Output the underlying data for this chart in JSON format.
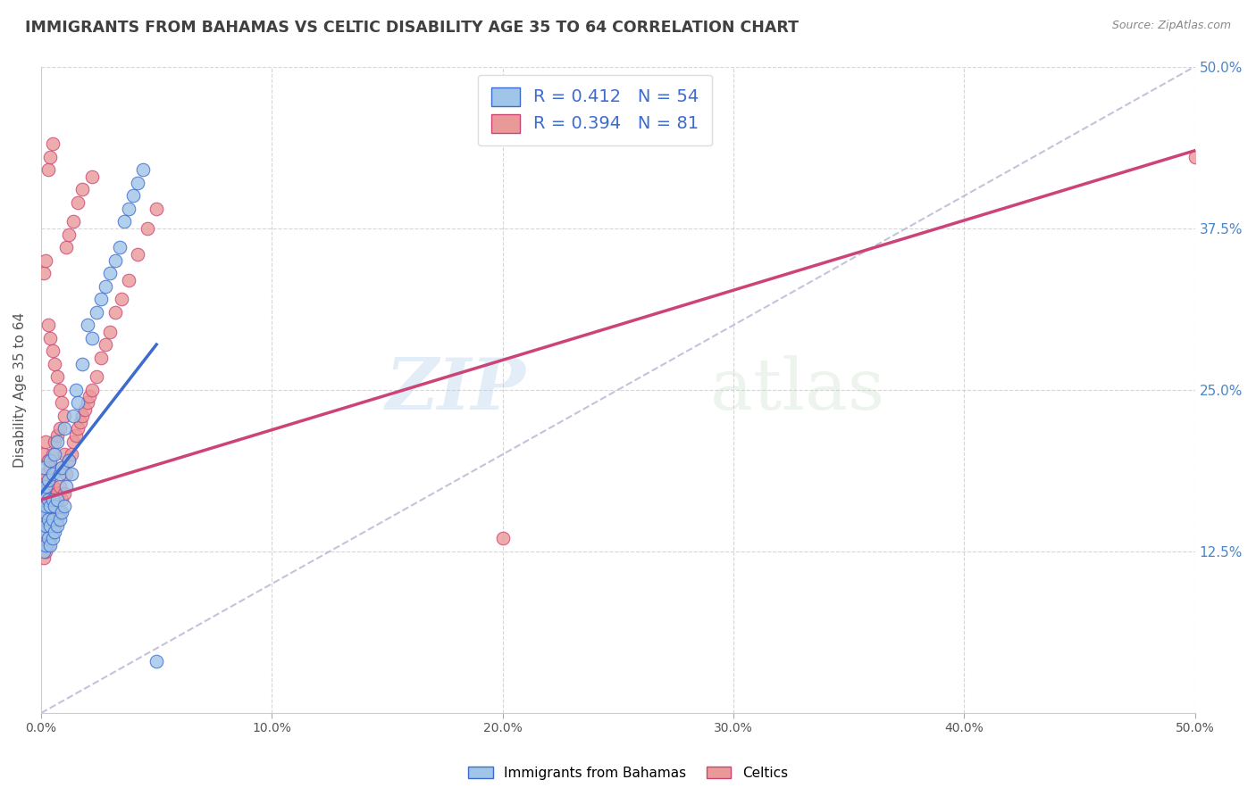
{
  "title": "IMMIGRANTS FROM BAHAMAS VS CELTIC DISABILITY AGE 35 TO 64 CORRELATION CHART",
  "source": "Source: ZipAtlas.com",
  "xlabel": "",
  "ylabel": "Disability Age 35 to 64",
  "xlim": [
    0.0,
    0.5
  ],
  "ylim": [
    0.0,
    0.5
  ],
  "xtick_labels": [
    "0.0%",
    "10.0%",
    "20.0%",
    "30.0%",
    "40.0%",
    "50.0%"
  ],
  "xtick_vals": [
    0.0,
    0.1,
    0.2,
    0.3,
    0.4,
    0.5
  ],
  "ytick_labels_right": [
    "12.5%",
    "25.0%",
    "37.5%",
    "50.0%"
  ],
  "ytick_vals_right": [
    0.125,
    0.25,
    0.375,
    0.5
  ],
  "legend1_label": "Immigrants from Bahamas",
  "legend2_label": "Celtics",
  "R_blue": 0.412,
  "N_blue": 54,
  "R_pink": 0.394,
  "N_pink": 81,
  "blue_color": "#9fc5e8",
  "pink_color": "#ea9999",
  "blue_line_color": "#3d6bce",
  "pink_line_color": "#cc4477",
  "grid_color": "#cccccc",
  "title_color": "#404040",
  "right_axis_color": "#4a86c8",
  "legend_text_color": "#3d6bce",
  "watermark_zip": "ZIP",
  "watermark_atlas": "atlas",
  "blue_line_x": [
    0.0,
    0.05
  ],
  "blue_line_y": [
    0.17,
    0.285
  ],
  "pink_line_x": [
    0.0,
    0.5
  ],
  "pink_line_y": [
    0.165,
    0.435
  ],
  "diag_line_x": [
    0.0,
    0.5
  ],
  "diag_line_y": [
    0.0,
    0.5
  ],
  "blue_scatter_x": [
    0.001,
    0.001,
    0.001,
    0.001,
    0.001,
    0.002,
    0.002,
    0.002,
    0.002,
    0.003,
    0.003,
    0.003,
    0.003,
    0.004,
    0.004,
    0.004,
    0.004,
    0.005,
    0.005,
    0.005,
    0.005,
    0.006,
    0.006,
    0.006,
    0.007,
    0.007,
    0.007,
    0.008,
    0.008,
    0.009,
    0.009,
    0.01,
    0.01,
    0.011,
    0.012,
    0.013,
    0.014,
    0.015,
    0.016,
    0.018,
    0.02,
    0.022,
    0.024,
    0.026,
    0.028,
    0.03,
    0.032,
    0.034,
    0.036,
    0.038,
    0.04,
    0.042,
    0.044,
    0.05
  ],
  "blue_scatter_y": [
    0.125,
    0.14,
    0.155,
    0.17,
    0.19,
    0.13,
    0.145,
    0.16,
    0.175,
    0.135,
    0.15,
    0.165,
    0.18,
    0.13,
    0.145,
    0.16,
    0.195,
    0.135,
    0.15,
    0.165,
    0.185,
    0.14,
    0.16,
    0.2,
    0.145,
    0.165,
    0.21,
    0.15,
    0.185,
    0.155,
    0.19,
    0.16,
    0.22,
    0.175,
    0.195,
    0.185,
    0.23,
    0.25,
    0.24,
    0.27,
    0.3,
    0.29,
    0.31,
    0.32,
    0.33,
    0.34,
    0.35,
    0.36,
    0.38,
    0.39,
    0.4,
    0.41,
    0.42,
    0.04
  ],
  "pink_scatter_x": [
    0.001,
    0.001,
    0.001,
    0.001,
    0.001,
    0.001,
    0.002,
    0.002,
    0.002,
    0.002,
    0.002,
    0.002,
    0.003,
    0.003,
    0.003,
    0.003,
    0.003,
    0.004,
    0.004,
    0.004,
    0.004,
    0.005,
    0.005,
    0.005,
    0.005,
    0.006,
    0.006,
    0.006,
    0.007,
    0.007,
    0.007,
    0.008,
    0.008,
    0.008,
    0.009,
    0.009,
    0.01,
    0.01,
    0.011,
    0.012,
    0.013,
    0.014,
    0.015,
    0.016,
    0.017,
    0.018,
    0.019,
    0.02,
    0.021,
    0.022,
    0.024,
    0.026,
    0.028,
    0.03,
    0.032,
    0.035,
    0.038,
    0.042,
    0.046,
    0.05,
    0.001,
    0.002,
    0.003,
    0.004,
    0.005,
    0.006,
    0.007,
    0.008,
    0.009,
    0.01,
    0.011,
    0.012,
    0.014,
    0.016,
    0.018,
    0.022,
    0.003,
    0.004,
    0.005,
    0.2,
    0.5
  ],
  "pink_scatter_y": [
    0.12,
    0.135,
    0.15,
    0.165,
    0.18,
    0.2,
    0.125,
    0.14,
    0.155,
    0.17,
    0.185,
    0.21,
    0.13,
    0.145,
    0.16,
    0.175,
    0.195,
    0.135,
    0.15,
    0.165,
    0.19,
    0.14,
    0.155,
    0.175,
    0.2,
    0.145,
    0.165,
    0.21,
    0.15,
    0.17,
    0.215,
    0.155,
    0.175,
    0.22,
    0.165,
    0.19,
    0.17,
    0.2,
    0.185,
    0.195,
    0.2,
    0.21,
    0.215,
    0.22,
    0.225,
    0.23,
    0.235,
    0.24,
    0.245,
    0.25,
    0.26,
    0.275,
    0.285,
    0.295,
    0.31,
    0.32,
    0.335,
    0.355,
    0.375,
    0.39,
    0.34,
    0.35,
    0.3,
    0.29,
    0.28,
    0.27,
    0.26,
    0.25,
    0.24,
    0.23,
    0.36,
    0.37,
    0.38,
    0.395,
    0.405,
    0.415,
    0.42,
    0.43,
    0.44,
    0.135,
    0.43
  ]
}
